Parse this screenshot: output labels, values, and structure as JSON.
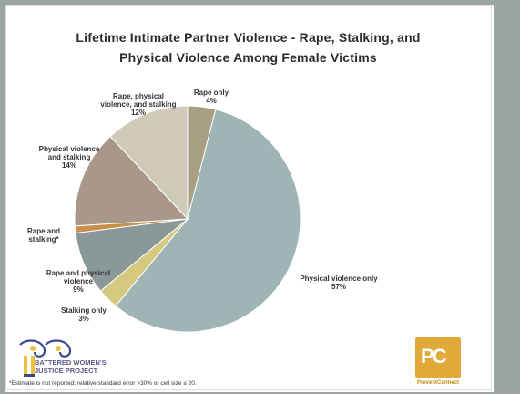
{
  "slide": {
    "title_line1": "Lifetime Intimate Partner Violence - Rape, Stalking, and",
    "title_line2": "Physical Violence Among Female Victims",
    "footnote": "*Estimate is not reported; relative standard error >30% or cell size ≤ 20.",
    "bwjp_line1": "BATTERED WOMEN'S",
    "bwjp_line2": "JUSTICE PROJECT",
    "pc_letters": "PC",
    "pc_label": "PreventConnect"
  },
  "colors": {
    "frame": "#9aa4a2",
    "title": "#2b2b2b"
  },
  "chart_data": {
    "type": "pie",
    "title": "Lifetime Intimate Partner Violence - Rape, Stalking, and Physical Violence Among Female Victims",
    "slices": [
      {
        "name": "Rape only",
        "value": 4,
        "label_lines": [
          "Rape only",
          "4%"
        ],
        "color": "#a69f84"
      },
      {
        "name": "Physical violence only",
        "value": 57,
        "label_lines": [
          "Physical violence only",
          "57%"
        ],
        "color": "#9fb5b5"
      },
      {
        "name": "Stalking only",
        "value": 3,
        "label_lines": [
          "Stalking only",
          "3%"
        ],
        "color": "#d4c97f"
      },
      {
        "name": "Rape and physical violence",
        "value": 9,
        "label_lines": [
          "Rape and physical",
          "violence",
          "9%"
        ],
        "color": "#8b9898"
      },
      {
        "name": "Rape and stalking",
        "value": 1,
        "label_lines": [
          "Rape and",
          "stalking*"
        ],
        "color": "#c8904d"
      },
      {
        "name": "Physical violence and stalking",
        "value": 14,
        "label_lines": [
          "Physical violence",
          "and stalking",
          "14%"
        ],
        "color": "#a9988a"
      },
      {
        "name": "Rape, physical violence, and stalking",
        "value": 12,
        "label_lines": [
          "Rape, physical",
          "violence, and stalking",
          "12%"
        ],
        "color": "#cfc9b8"
      }
    ]
  }
}
